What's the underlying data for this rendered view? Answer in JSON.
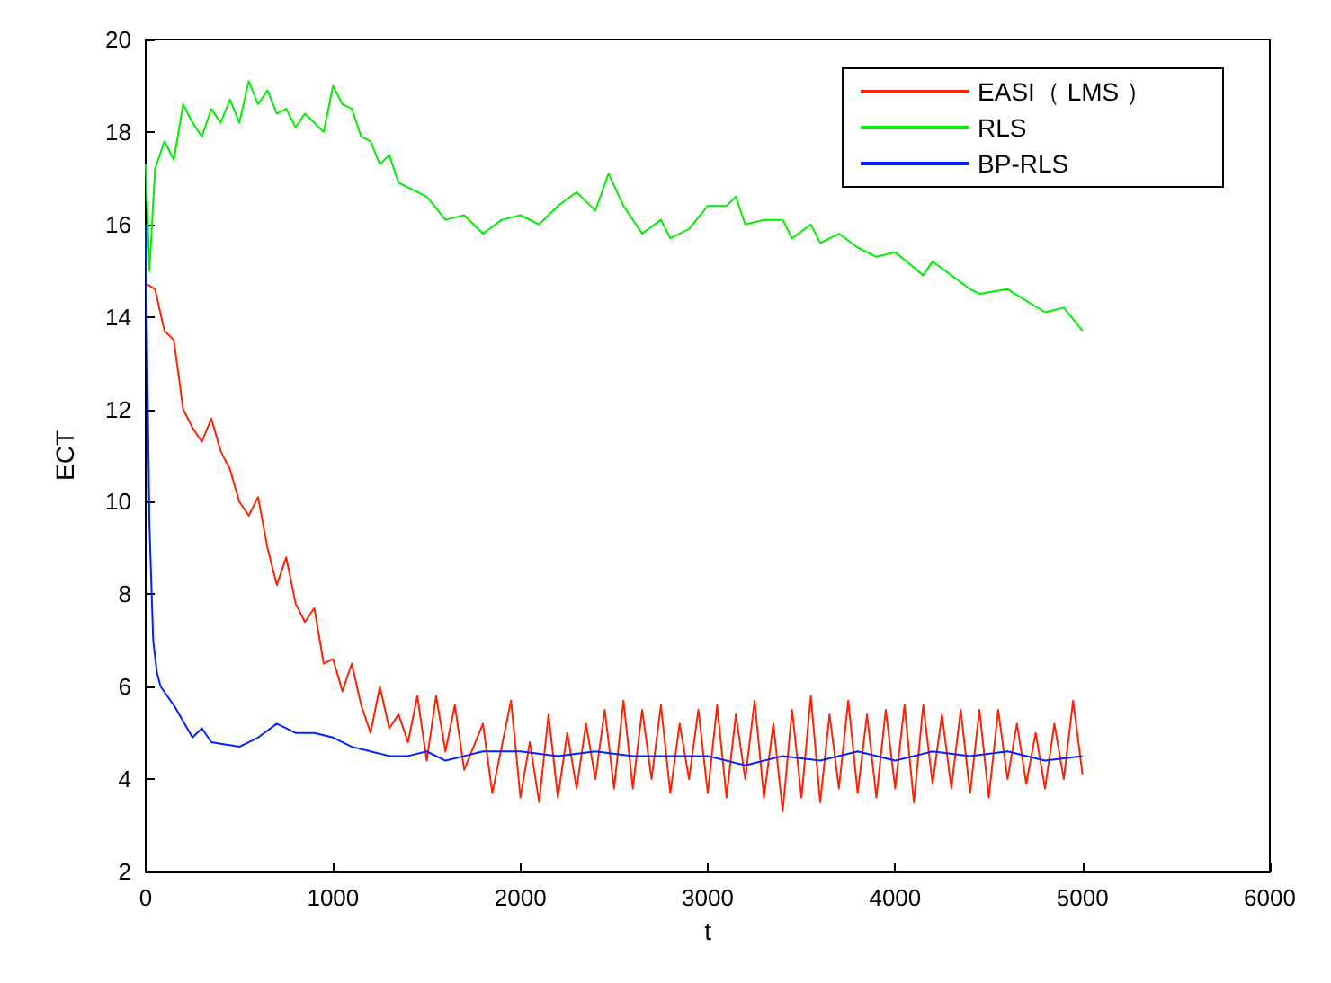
{
  "chart_data": {
    "type": "line",
    "xlabel": "t",
    "ylabel": "ECT",
    "xlim": [
      0,
      6000
    ],
    "xticks": [
      0,
      1000,
      2000,
      3000,
      4000,
      5000,
      6000
    ],
    "ylim": [
      2,
      20
    ],
    "yticks": [
      2,
      4,
      6,
      8,
      10,
      12,
      14,
      16,
      18,
      20
    ],
    "grid": false,
    "legend": "top right",
    "marker": "none",
    "line_style": "solid",
    "series": [
      {
        "name": "EASI（ LMS ）",
        "color": "#ff2200",
        "x": [
          10,
          50,
          100,
          150,
          200,
          250,
          300,
          350,
          400,
          450,
          500,
          550,
          600,
          650,
          700,
          750,
          800,
          850,
          900,
          950,
          1000,
          1050,
          1100,
          1150,
          1200,
          1250,
          1300,
          1350,
          1400,
          1450,
          1500,
          1550,
          1600,
          1650,
          1700,
          1800,
          1850,
          1950,
          2000,
          2050,
          2100,
          2150,
          2200,
          2250,
          2300,
          2350,
          2400,
          2450,
          2500,
          2550,
          2600,
          2650,
          2700,
          2750,
          2800,
          2850,
          2900,
          2950,
          3000,
          3050,
          3100,
          3150,
          3200,
          3250,
          3300,
          3350,
          3400,
          3450,
          3500,
          3550,
          3600,
          3650,
          3700,
          3750,
          3800,
          3850,
          3900,
          3950,
          4000,
          4050,
          4100,
          4150,
          4200,
          4250,
          4300,
          4350,
          4400,
          4450,
          4500,
          4550,
          4600,
          4650,
          4700,
          4750,
          4800,
          4850,
          4900,
          4950,
          5000
        ],
        "values": [
          14.7,
          14.6,
          13.7,
          13.5,
          12.0,
          11.6,
          11.3,
          11.8,
          11.1,
          10.7,
          10.0,
          9.7,
          10.1,
          9.0,
          8.2,
          8.8,
          7.8,
          7.4,
          7.7,
          6.5,
          6.6,
          5.9,
          6.5,
          5.6,
          5.0,
          6.0,
          5.1,
          5.4,
          4.8,
          5.8,
          4.4,
          5.8,
          4.6,
          5.6,
          4.2,
          5.2,
          3.7,
          5.7,
          3.6,
          4.8,
          3.5,
          5.4,
          3.6,
          5.0,
          3.8,
          5.2,
          4.0,
          5.5,
          3.8,
          5.7,
          3.8,
          5.5,
          4.0,
          5.6,
          3.7,
          5.2,
          4.0,
          5.5,
          3.7,
          5.6,
          3.6,
          5.4,
          4.0,
          5.7,
          3.6,
          5.2,
          3.3,
          5.5,
          3.6,
          5.8,
          3.5,
          5.4,
          3.8,
          5.7,
          3.7,
          5.4,
          3.6,
          5.5,
          3.8,
          5.6,
          3.5,
          5.6,
          3.9,
          5.4,
          3.8,
          5.5,
          3.7,
          5.5,
          3.6,
          5.5,
          4.0,
          5.2,
          3.9,
          5.0,
          3.8,
          5.2,
          4.0,
          5.7,
          4.1
        ]
      },
      {
        "name": "RLS",
        "color": "#00ee00",
        "x": [
          0,
          20,
          50,
          100,
          150,
          200,
          250,
          300,
          350,
          400,
          450,
          500,
          550,
          600,
          650,
          700,
          750,
          800,
          850,
          900,
          950,
          1000,
          1050,
          1100,
          1150,
          1200,
          1250,
          1300,
          1350,
          1400,
          1500,
          1600,
          1700,
          1750,
          1800,
          1900,
          2000,
          2100,
          2200,
          2300,
          2400,
          2470,
          2550,
          2650,
          2750,
          2800,
          2900,
          3000,
          3100,
          3150,
          3200,
          3300,
          3400,
          3450,
          3550,
          3600,
          3700,
          3800,
          3900,
          4000,
          4150,
          4200,
          4300,
          4400,
          4450,
          4600,
          4800,
          4900,
          5000
        ],
        "values": [
          17.3,
          15.0,
          17.2,
          17.8,
          17.4,
          18.6,
          18.2,
          17.9,
          18.5,
          18.2,
          18.7,
          18.2,
          19.1,
          18.6,
          18.9,
          18.4,
          18.5,
          18.1,
          18.4,
          18.2,
          18.0,
          19.0,
          18.6,
          18.5,
          17.9,
          17.8,
          17.3,
          17.5,
          16.9,
          16.8,
          16.6,
          16.1,
          16.2,
          16.0,
          15.8,
          16.1,
          16.2,
          16.0,
          16.4,
          16.7,
          16.3,
          17.1,
          16.4,
          15.8,
          16.1,
          15.7,
          15.9,
          16.4,
          16.4,
          16.6,
          16.0,
          16.1,
          16.1,
          15.7,
          16.0,
          15.6,
          15.8,
          15.5,
          15.3,
          15.4,
          14.9,
          15.2,
          14.9,
          14.6,
          14.5,
          14.6,
          14.1,
          14.2,
          13.7
        ]
      },
      {
        "name": "BP-RLS",
        "color": "#0022ff",
        "x": [
          0,
          10,
          20,
          40,
          60,
          80,
          150,
          250,
          300,
          350,
          500,
          600,
          700,
          800,
          900,
          1000,
          1100,
          1200,
          1300,
          1400,
          1500,
          1600,
          1700,
          1800,
          2000,
          2200,
          2400,
          2600,
          2800,
          3000,
          3200,
          3400,
          3600,
          3800,
          4000,
          4200,
          4400,
          4600,
          4800,
          5000
        ],
        "values": [
          16.0,
          12.5,
          9.5,
          7.0,
          6.3,
          6.0,
          5.6,
          4.9,
          5.1,
          4.8,
          4.7,
          4.9,
          5.2,
          5.0,
          5.0,
          4.9,
          4.7,
          4.6,
          4.5,
          4.5,
          4.6,
          4.4,
          4.5,
          4.6,
          4.6,
          4.5,
          4.6,
          4.5,
          4.5,
          4.5,
          4.3,
          4.5,
          4.4,
          4.6,
          4.4,
          4.6,
          4.5,
          4.6,
          4.4,
          4.5
        ]
      }
    ]
  }
}
